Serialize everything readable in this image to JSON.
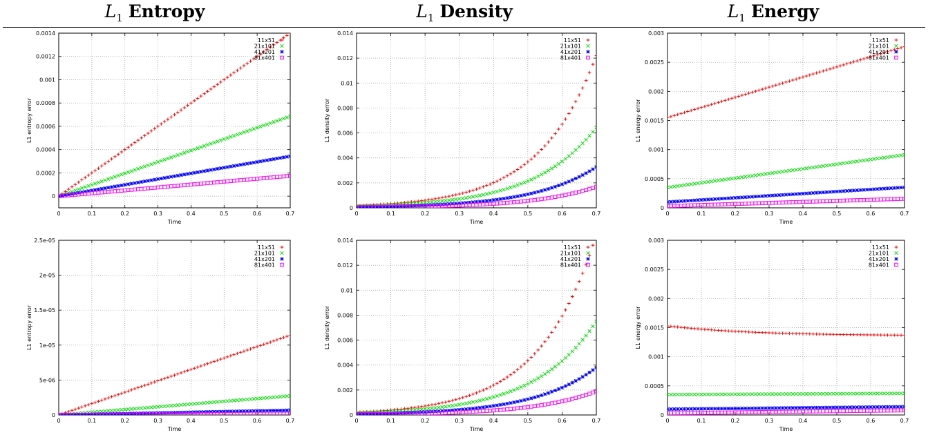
{
  "column_titles": [
    {
      "symbol": "L",
      "subscript": "1",
      "word": "Entropy"
    },
    {
      "symbol": "L",
      "subscript": "1",
      "word": "Density"
    },
    {
      "symbol": "L",
      "subscript": "1",
      "word": "Energy"
    }
  ],
  "colors": {
    "11x51": "#ff0000",
    "21x101": "#00dd00",
    "41x201": "#0000ff",
    "81x401": "#ff00ff",
    "grid": "#999999"
  },
  "chart_data": [
    {
      "type": "scatter",
      "xlabel": "Time",
      "ylabel": "L1 entropy error",
      "xlim": [
        0,
        0.7
      ],
      "ylim": [
        -0.0001,
        0.0014
      ],
      "xticks": [
        "0",
        "0.1",
        "0.2",
        "0.3",
        "0.4",
        "0.5",
        "0.6",
        "0.7"
      ],
      "yticks": [
        {
          "v": 0,
          "t": "0"
        },
        {
          "v": 0.0002,
          "t": "0.0002"
        },
        {
          "v": 0.0004,
          "t": "0.0004"
        },
        {
          "v": 0.0006,
          "t": "0.0006"
        },
        {
          "v": 0.0008,
          "t": "0.0008"
        },
        {
          "v": 0.001,
          "t": "0.001"
        },
        {
          "v": 0.0012,
          "t": "0.0012"
        },
        {
          "v": 0.0014,
          "t": "0.0014"
        }
      ],
      "legend": "top-right",
      "series": [
        {
          "name": "11x51",
          "marker": "plus",
          "model": "lin",
          "a": 0,
          "b": 0.002
        },
        {
          "name": "21x101",
          "marker": "cross",
          "model": "lin",
          "a": 0,
          "b": 0.00098
        },
        {
          "name": "41x201",
          "marker": "star",
          "model": "lin",
          "a": 0,
          "b": 0.00049
        },
        {
          "name": "81x401",
          "marker": "square",
          "model": "lin",
          "a": 0,
          "b": 0.00025
        }
      ]
    },
    {
      "type": "scatter",
      "xlabel": "Time",
      "ylabel": "L1 density error",
      "xlim": [
        0,
        0.7
      ],
      "ylim": [
        0,
        0.014
      ],
      "xticks": [
        "0",
        "0.1",
        "0.2",
        "0.3",
        "0.4",
        "0.5",
        "0.6",
        "0.7"
      ],
      "yticks": [
        {
          "v": 0,
          "t": "0"
        },
        {
          "v": 0.002,
          "t": "0.002"
        },
        {
          "v": 0.004,
          "t": "0.004"
        },
        {
          "v": 0.006,
          "t": "0.006"
        },
        {
          "v": 0.008,
          "t": "0.008"
        },
        {
          "v": 0.01,
          "t": "0.01"
        },
        {
          "v": 0.012,
          "t": "0.012"
        },
        {
          "v": 0.014,
          "t": "0.014"
        }
      ],
      "legend": "top-right",
      "series": [
        {
          "name": "11x51",
          "marker": "plus",
          "model": "exp",
          "a": 0.0115,
          "b": 6.0
        },
        {
          "name": "21x101",
          "marker": "cross",
          "model": "exp",
          "a": 0.0061,
          "b": 5.5
        },
        {
          "name": "41x201",
          "marker": "star",
          "model": "exp",
          "a": 0.0031,
          "b": 5.5
        },
        {
          "name": "81x401",
          "marker": "square",
          "model": "exp",
          "a": 0.0016,
          "b": 5.5
        }
      ]
    },
    {
      "type": "scatter",
      "xlabel": "Time",
      "ylabel": "L1 energy error",
      "xlim": [
        0,
        0.7
      ],
      "ylim": [
        0,
        0.003
      ],
      "xticks": [
        "0",
        "0.1",
        "0.2",
        "0.3",
        "0.4",
        "0.5",
        "0.6",
        "0.7"
      ],
      "yticks": [
        {
          "v": 0,
          "t": "0"
        },
        {
          "v": 0.0005,
          "t": "0.0005"
        },
        {
          "v": 0.001,
          "t": "0.001"
        },
        {
          "v": 0.0015,
          "t": "0.0015"
        },
        {
          "v": 0.002,
          "t": "0.002"
        },
        {
          "v": 0.0025,
          "t": "0.0025"
        },
        {
          "v": 0.003,
          "t": "0.003"
        }
      ],
      "legend": "top-right",
      "series": [
        {
          "name": "11x51",
          "marker": "plus",
          "model": "lin",
          "a": 0.00155,
          "b": 0.00174
        },
        {
          "name": "21x101",
          "marker": "cross",
          "model": "lin",
          "a": 0.00035,
          "b": 0.0008
        },
        {
          "name": "41x201",
          "marker": "star",
          "model": "lin",
          "a": 0.0001,
          "b": 0.00036
        },
        {
          "name": "81x401",
          "marker": "square",
          "model": "lin",
          "a": 3e-05,
          "b": 0.00018
        }
      ]
    },
    {
      "type": "scatter",
      "xlabel": "Time",
      "ylabel": "L1 entropy error",
      "xlim": [
        0,
        0.7
      ],
      "ylim": [
        0,
        2.5e-05
      ],
      "xticks": [
        "0",
        "0.1",
        "0.2",
        "0.3",
        "0.4",
        "0.5",
        "0.6",
        "0.7"
      ],
      "yticks": [
        {
          "v": 0,
          "t": "0"
        },
        {
          "v": 5e-06,
          "t": "5e-06"
        },
        {
          "v": 1e-05,
          "t": "1e-05"
        },
        {
          "v": 1.5e-05,
          "t": "1.5e-05"
        },
        {
          "v": 2e-05,
          "t": "2e-05"
        },
        {
          "v": 2.5e-05,
          "t": "2.5e-05"
        }
      ],
      "legend": "top-right",
      "series": [
        {
          "name": "11x51",
          "marker": "plus",
          "model": "lin",
          "a": 0,
          "b": 1.63e-05
        },
        {
          "name": "21x101",
          "marker": "cross",
          "model": "lin",
          "a": 0,
          "b": 3.9e-06
        },
        {
          "name": "41x201",
          "marker": "star",
          "model": "lin",
          "a": 0,
          "b": 9.8e-07
        },
        {
          "name": "81x401",
          "marker": "square",
          "model": "lin",
          "a": 0,
          "b": 2.5e-07
        }
      ]
    },
    {
      "type": "scatter",
      "xlabel": "Time",
      "ylabel": "L1 density error",
      "xlim": [
        0,
        0.7
      ],
      "ylim": [
        0,
        0.014
      ],
      "xticks": [
        "0",
        "0.1",
        "0.2",
        "0.3",
        "0.4",
        "0.5",
        "0.6",
        "0.7"
      ],
      "yticks": [
        {
          "v": 0,
          "t": "0"
        },
        {
          "v": 0.002,
          "t": "0.002"
        },
        {
          "v": 0.004,
          "t": "0.004"
        },
        {
          "v": 0.006,
          "t": "0.006"
        },
        {
          "v": 0.008,
          "t": "0.008"
        },
        {
          "v": 0.01,
          "t": "0.01"
        },
        {
          "v": 0.012,
          "t": "0.012"
        },
        {
          "v": 0.014,
          "t": "0.014"
        }
      ],
      "legend": "top-right",
      "series": [
        {
          "name": "11x51",
          "marker": "plus",
          "model": "exp",
          "a": 0.0136,
          "b": 6.0
        },
        {
          "name": "21x101",
          "marker": "cross",
          "model": "exp",
          "a": 0.0071,
          "b": 5.5
        },
        {
          "name": "41x201",
          "marker": "star",
          "model": "exp",
          "a": 0.0036,
          "b": 5.5
        },
        {
          "name": "81x401",
          "marker": "square",
          "model": "exp",
          "a": 0.0018,
          "b": 5.5
        }
      ]
    },
    {
      "type": "scatter",
      "xlabel": "Time",
      "ylabel": "L1 energy error",
      "xlim": [
        0,
        0.7
      ],
      "ylim": [
        0,
        0.003
      ],
      "xticks": [
        "0",
        "0.1",
        "0.2",
        "0.3",
        "0.4",
        "0.5",
        "0.6",
        "0.7"
      ],
      "yticks": [
        {
          "v": 0,
          "t": "0"
        },
        {
          "v": 0.0005,
          "t": "0.0005"
        },
        {
          "v": 0.001,
          "t": "0.001"
        },
        {
          "v": 0.0015,
          "t": "0.0015"
        },
        {
          "v": 0.002,
          "t": "0.002"
        },
        {
          "v": 0.0025,
          "t": "0.0025"
        },
        {
          "v": 0.003,
          "t": "0.003"
        }
      ],
      "legend": "top-right",
      "series": [
        {
          "name": "11x51",
          "marker": "plus",
          "model": "decay",
          "a": 0.00153,
          "b": 0.00017
        },
        {
          "name": "21x101",
          "marker": "cross",
          "model": "lin",
          "a": 0.00035,
          "b": 3e-05
        },
        {
          "name": "41x201",
          "marker": "star",
          "model": "lin",
          "a": 0.0001,
          "b": 6e-05
        },
        {
          "name": "81x401",
          "marker": "square",
          "model": "lin",
          "a": 3e-05,
          "b": 7e-05
        }
      ]
    }
  ]
}
